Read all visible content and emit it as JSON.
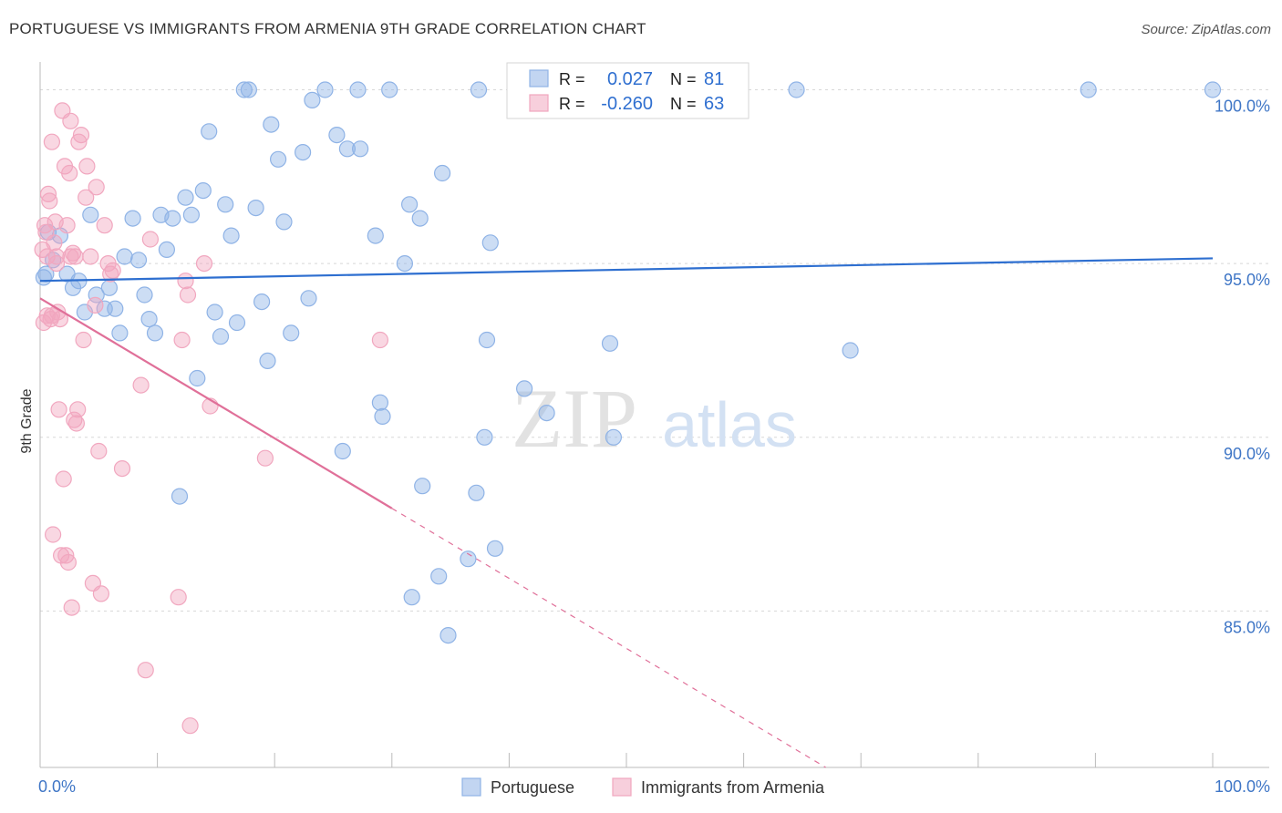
{
  "title": "PORTUGUESE VS IMMIGRANTS FROM ARMENIA 9TH GRADE CORRELATION CHART",
  "source": "Source: ZipAtlas.com",
  "watermark": {
    "part1": "ZIP",
    "part2": "atlas"
  },
  "chart_data": {
    "type": "scatter",
    "title": "PORTUGUESE VS IMMIGRANTS FROM ARMENIA 9TH GRADE CORRELATION CHART",
    "xlabel": "",
    "ylabel": "9th Grade",
    "xlim": [
      0,
      100
    ],
    "ylim": [
      80.5,
      100.8
    ],
    "x_tick_labels": {
      "left": "0.0%",
      "right": "100.0%"
    },
    "y_ticks": [
      {
        "value": 100,
        "label": "100.0%"
      },
      {
        "value": 95,
        "label": "95.0%"
      },
      {
        "value": 90,
        "label": "90.0%"
      },
      {
        "value": 85,
        "label": "85.0%"
      }
    ],
    "grid": true,
    "legend_stats": [
      {
        "r_label": "R =",
        "r_value": "0.027",
        "n_label": "N =",
        "n_value": "81",
        "color": "#8fb3e6"
      },
      {
        "r_label": "R =",
        "r_value": "-0.260",
        "n_label": "N =",
        "n_value": "63",
        "color": "#f1a7bf"
      }
    ],
    "series": [
      {
        "name": "Portuguese",
        "color": "#8fb3e6",
        "line_color": "#2e6fd0",
        "trend": {
          "x0": 0,
          "y0": 94.5,
          "x1": 100,
          "y1": 95.15,
          "solid_until": 100
        },
        "points": [
          [
            0.5,
            94.7
          ],
          [
            0.7,
            95.9
          ],
          [
            1.1,
            95.1
          ],
          [
            1.7,
            95.8
          ],
          [
            2.3,
            94.7
          ],
          [
            2.8,
            94.3
          ],
          [
            3.3,
            94.5
          ],
          [
            3.8,
            93.6
          ],
          [
            4.3,
            96.4
          ],
          [
            4.8,
            94.1
          ],
          [
            5.5,
            93.7
          ],
          [
            5.9,
            94.3
          ],
          [
            6.4,
            93.7
          ],
          [
            6.8,
            93.0
          ],
          [
            7.2,
            95.2
          ],
          [
            7.9,
            96.3
          ],
          [
            8.4,
            95.1
          ],
          [
            8.9,
            94.1
          ],
          [
            9.3,
            93.4
          ],
          [
            9.8,
            93.0
          ],
          [
            10.3,
            96.4
          ],
          [
            10.8,
            95.4
          ],
          [
            11.3,
            96.3
          ],
          [
            11.9,
            88.3
          ],
          [
            12.4,
            96.9
          ],
          [
            12.9,
            96.4
          ],
          [
            13.4,
            91.7
          ],
          [
            13.9,
            97.1
          ],
          [
            14.4,
            98.8
          ],
          [
            14.9,
            93.6
          ],
          [
            15.4,
            92.9
          ],
          [
            15.8,
            96.7
          ],
          [
            16.3,
            95.8
          ],
          [
            16.8,
            93.3
          ],
          [
            17.4,
            100.0
          ],
          [
            17.8,
            100.0
          ],
          [
            18.4,
            96.6
          ],
          [
            18.9,
            93.9
          ],
          [
            19.4,
            92.2
          ],
          [
            19.7,
            99.0
          ],
          [
            20.3,
            98.0
          ],
          [
            20.8,
            96.2
          ],
          [
            21.4,
            93.0
          ],
          [
            22.4,
            98.2
          ],
          [
            22.9,
            94.0
          ],
          [
            23.2,
            99.7
          ],
          [
            24.3,
            100.0
          ],
          [
            25.3,
            98.7
          ],
          [
            25.8,
            89.6
          ],
          [
            26.2,
            98.3
          ],
          [
            27.1,
            100.0
          ],
          [
            27.3,
            98.3
          ],
          [
            28.6,
            95.8
          ],
          [
            29.0,
            91.0
          ],
          [
            29.2,
            90.6
          ],
          [
            29.8,
            100.0
          ],
          [
            31.1,
            95.0
          ],
          [
            31.5,
            96.7
          ],
          [
            31.7,
            85.4
          ],
          [
            32.4,
            96.3
          ],
          [
            32.6,
            88.6
          ],
          [
            34.0,
            86.0
          ],
          [
            34.3,
            97.6
          ],
          [
            34.8,
            84.3
          ],
          [
            36.5,
            86.5
          ],
          [
            37.2,
            88.4
          ],
          [
            37.4,
            100.0
          ],
          [
            37.9,
            90.0
          ],
          [
            38.1,
            92.8
          ],
          [
            38.4,
            95.6
          ],
          [
            38.8,
            86.8
          ],
          [
            41.3,
            91.4
          ],
          [
            43.2,
            90.7
          ],
          [
            45.0,
            100.0
          ],
          [
            48.6,
            92.7
          ],
          [
            48.9,
            90.0
          ],
          [
            64.5,
            100.0
          ],
          [
            69.1,
            92.5
          ],
          [
            89.4,
            100.0
          ],
          [
            100.0,
            100.0
          ],
          [
            0.3,
            94.6
          ]
        ]
      },
      {
        "name": "Immigrants from Armenia",
        "color": "#f1a7bf",
        "line_color": "#e07099",
        "trend": {
          "x0": 0,
          "y0": 94.0,
          "x1": 67,
          "y1": 80.5,
          "solid_until": 30
        },
        "points": [
          [
            0.2,
            95.4
          ],
          [
            0.3,
            93.3
          ],
          [
            0.4,
            96.1
          ],
          [
            0.5,
            95.9
          ],
          [
            0.6,
            95.2
          ],
          [
            0.7,
            97.0
          ],
          [
            0.8,
            96.8
          ],
          [
            0.9,
            93.4
          ],
          [
            1.0,
            98.5
          ],
          [
            1.1,
            87.2
          ],
          [
            1.2,
            95.6
          ],
          [
            1.3,
            96.2
          ],
          [
            1.4,
            95.0
          ],
          [
            1.5,
            93.6
          ],
          [
            1.6,
            90.8
          ],
          [
            1.7,
            93.4
          ],
          [
            1.8,
            86.6
          ],
          [
            1.9,
            99.4
          ],
          [
            2.0,
            88.8
          ],
          [
            2.1,
            97.8
          ],
          [
            2.2,
            86.6
          ],
          [
            2.3,
            96.1
          ],
          [
            2.4,
            86.4
          ],
          [
            2.5,
            97.6
          ],
          [
            2.6,
            99.1
          ],
          [
            2.7,
            85.1
          ],
          [
            2.8,
            95.3
          ],
          [
            2.9,
            90.5
          ],
          [
            3.0,
            95.2
          ],
          [
            3.1,
            90.4
          ],
          [
            3.2,
            90.8
          ],
          [
            3.3,
            98.5
          ],
          [
            3.5,
            98.7
          ],
          [
            3.7,
            92.8
          ],
          [
            3.9,
            96.9
          ],
          [
            4.0,
            97.8
          ],
          [
            4.3,
            95.2
          ],
          [
            4.5,
            85.8
          ],
          [
            4.7,
            93.8
          ],
          [
            4.8,
            97.2
          ],
          [
            5.0,
            89.6
          ],
          [
            5.2,
            85.5
          ],
          [
            5.5,
            96.1
          ],
          [
            5.8,
            95.0
          ],
          [
            6.0,
            94.7
          ],
          [
            6.2,
            94.8
          ],
          [
            7.0,
            89.1
          ],
          [
            8.6,
            91.5
          ],
          [
            9.0,
            83.3
          ],
          [
            9.4,
            95.7
          ],
          [
            11.8,
            85.4
          ],
          [
            12.1,
            92.8
          ],
          [
            12.4,
            94.5
          ],
          [
            12.6,
            94.1
          ],
          [
            12.8,
            81.7
          ],
          [
            14.0,
            95.0
          ],
          [
            14.5,
            90.9
          ],
          [
            19.2,
            89.4
          ],
          [
            29.0,
            92.8
          ],
          [
            0.6,
            93.5
          ],
          [
            1.0,
            93.5
          ],
          [
            1.4,
            95.2
          ],
          [
            2.6,
            95.2
          ]
        ]
      }
    ]
  }
}
